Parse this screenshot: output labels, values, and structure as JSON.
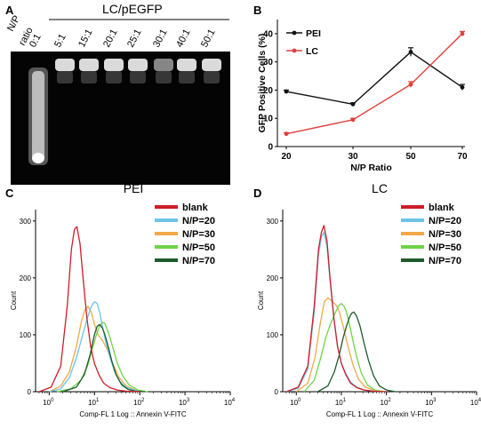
{
  "panel_letters": [
    "A",
    "B",
    "C",
    "D"
  ],
  "gel": {
    "title": "LC/pEGFP",
    "np_label_top": "N/P",
    "np_label_bottom": "ratio",
    "lanes": [
      "0:1",
      "5:1",
      "15:1",
      "20:1",
      "25:1",
      "30:1",
      "40:1",
      "50:1"
    ]
  },
  "colors": {
    "pei": "#111111",
    "lc": "#e0403a",
    "blank": "#d01c2a",
    "np20": "#6cc4e8",
    "np30": "#f2a84a",
    "np50": "#6fd34a",
    "np70": "#1f5a2c"
  },
  "chart_data": [
    {
      "type": "line",
      "panel": "B",
      "categories": [
        "20",
        "30",
        "50",
        "70"
      ],
      "xlabel": "N/P Ratio",
      "ylabel": "GFP Positive Cells (%)",
      "ylim": [
        0,
        45
      ],
      "yticks": [
        "0",
        "10",
        "20",
        "30",
        "40"
      ],
      "legend": "top-left",
      "series": [
        {
          "name": "PEI",
          "values": [
            19.5,
            15,
            33.5,
            21
          ],
          "errors": [
            0.5,
            0.5,
            1.5,
            1.0
          ]
        },
        {
          "name": "LC",
          "values": [
            4.5,
            9.5,
            22,
            40
          ],
          "errors": [
            0.4,
            0.5,
            1.0,
            0.8
          ]
        }
      ]
    },
    {
      "type": "line",
      "panel": "C",
      "title": "PEI",
      "xlabel": "Comp-FL 1 Log :: Annexin V-FITC",
      "ylabel": "Count",
      "xscale": "log",
      "xlim": [
        0.5,
        10000
      ],
      "ylim": [
        0,
        320
      ],
      "yticks": [
        "0",
        "100",
        "200",
        "300"
      ],
      "xtick_bases": [
        "10",
        "10",
        "10",
        "10",
        "10"
      ],
      "xtick_exps": [
        "0",
        "1",
        "2",
        "3",
        "4"
      ],
      "legend": "top-right",
      "series": [
        {
          "name": "blank",
          "key": "blank",
          "x": [
            0.6,
            1.1,
            1.8,
            2.5,
            3.1,
            3.6,
            4.1,
            4.8,
            5.6,
            6.8,
            8.2,
            10,
            12.5,
            16,
            22,
            32,
            50,
            100
          ],
          "values": [
            0,
            8,
            45,
            150,
            250,
            285,
            290,
            260,
            200,
            130,
            80,
            50,
            30,
            15,
            7,
            3,
            1,
            0
          ]
        },
        {
          "name": "N/P=20",
          "key": "np20",
          "x": [
            1,
            1.8,
            2.8,
            4,
            5.5,
            7,
            8.5,
            10,
            11.5,
            13,
            15,
            18,
            22,
            28,
            36,
            50,
            80,
            130
          ],
          "values": [
            0,
            5,
            25,
            60,
            100,
            130,
            150,
            158,
            155,
            140,
            115,
            85,
            60,
            35,
            18,
            8,
            2,
            0
          ]
        },
        {
          "name": "N/P=30",
          "key": "np30",
          "x": [
            1,
            1.8,
            2.8,
            4,
            5.2,
            6.2,
            7.2,
            8.5,
            10,
            12,
            15,
            19,
            25,
            35,
            50,
            80,
            130
          ],
          "values": [
            0,
            10,
            35,
            80,
            125,
            145,
            150,
            140,
            118,
            100,
            90,
            75,
            50,
            25,
            10,
            3,
            0
          ]
        },
        {
          "name": "N/P=50",
          "key": "np50",
          "x": [
            1.5,
            3,
            5,
            7,
            9,
            11,
            13,
            15,
            17,
            19,
            22,
            26,
            32,
            42,
            58,
            90,
            150
          ],
          "values": [
            0,
            5,
            20,
            45,
            75,
            100,
            115,
            122,
            120,
            110,
            95,
            75,
            50,
            28,
            12,
            3,
            0
          ]
        },
        {
          "name": "N/P=70",
          "key": "np70",
          "x": [
            2,
            4,
            6,
            8,
            10,
            11.5,
            13,
            15,
            17,
            20,
            24,
            30,
            40,
            55,
            80,
            130
          ],
          "values": [
            0,
            8,
            30,
            65,
            100,
            115,
            118,
            112,
            100,
            80,
            55,
            30,
            12,
            4,
            1,
            0
          ]
        }
      ]
    },
    {
      "type": "line",
      "panel": "D",
      "title": "LC",
      "xlabel": "Comp-FL 1 Log :: Annexin V-FITC",
      "ylabel": "Count",
      "xscale": "log",
      "xlim": [
        0.5,
        10000
      ],
      "ylim": [
        0,
        320
      ],
      "yticks": [
        "0",
        "100",
        "200",
        "300"
      ],
      "xtick_bases": [
        "10",
        "10",
        "10",
        "10",
        "10"
      ],
      "xtick_exps": [
        "0",
        "1",
        "2",
        "3",
        "4"
      ],
      "legend": "top-right",
      "series": [
        {
          "name": "blank",
          "key": "blank",
          "x": [
            0.6,
            1.1,
            1.8,
            2.5,
            3.1,
            3.6,
            4.1,
            4.8,
            5.6,
            6.8,
            8.2,
            10,
            12.5,
            16,
            22,
            32,
            50,
            100
          ],
          "values": [
            0,
            8,
            45,
            150,
            250,
            280,
            292,
            265,
            200,
            130,
            80,
            50,
            30,
            15,
            7,
            3,
            1,
            0
          ]
        },
        {
          "name": "N/P=20",
          "key": "np20",
          "x": [
            0.6,
            1.1,
            1.8,
            2.5,
            3.1,
            3.6,
            4.1,
            4.8,
            5.6,
            6.8,
            8.2,
            10,
            12.5,
            16,
            22,
            32,
            50,
            100
          ],
          "values": [
            0,
            6,
            40,
            140,
            240,
            272,
            280,
            255,
            195,
            128,
            80,
            50,
            32,
            17,
            8,
            3,
            1,
            0
          ]
        },
        {
          "name": "N/P=30",
          "key": "np30",
          "x": [
            1,
            1.8,
            2.6,
            3.4,
            4.2,
            5,
            6,
            7,
            8,
            9,
            11,
            14,
            18,
            24,
            34,
            55,
            100
          ],
          "values": [
            0,
            15,
            60,
            120,
            158,
            165,
            160,
            155,
            150,
            140,
            115,
            80,
            48,
            22,
            8,
            2,
            0
          ]
        },
        {
          "name": "N/P=50",
          "key": "np50",
          "x": [
            1.5,
            2.5,
            3.5,
            4.5,
            5.5,
            7,
            8.5,
            10,
            11.5,
            13,
            15,
            18,
            22,
            28,
            38,
            55,
            90
          ],
          "values": [
            0,
            20,
            60,
            95,
            115,
            135,
            150,
            155,
            150,
            140,
            120,
            90,
            60,
            32,
            12,
            3,
            0
          ]
        },
        {
          "name": "N/P=70",
          "key": "np70",
          "x": [
            3,
            5,
            7,
            9,
            11,
            13,
            15,
            17,
            19,
            22,
            26,
            32,
            40,
            52,
            70,
            100,
            160
          ],
          "values": [
            0,
            10,
            35,
            65,
            95,
            115,
            130,
            138,
            140,
            132,
            115,
            85,
            55,
            28,
            10,
            3,
            0
          ]
        }
      ]
    }
  ]
}
